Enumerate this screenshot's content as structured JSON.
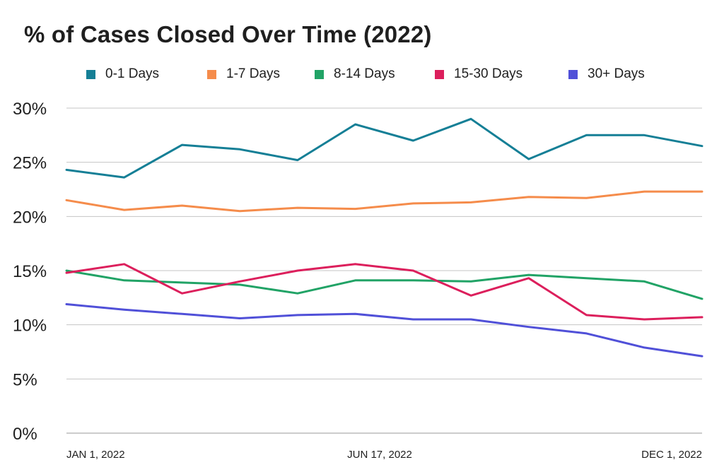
{
  "chart_data": {
    "type": "line",
    "title": "% of Cases Closed Over Time (2022)",
    "xlabel": "",
    "ylabel": "",
    "ylim": [
      0,
      30
    ],
    "y_ticks": [
      "0%",
      "5%",
      "10%",
      "15%",
      "20%",
      "25%",
      "30%"
    ],
    "x_tick_labels": [
      "JAN 1, 2022",
      "JUN 17, 2022",
      "DEC 1, 2022"
    ],
    "legend_position": "top",
    "grid": "horizontal",
    "series": [
      {
        "name": "0-1 Days",
        "color": "#157f96",
        "values": [
          24.3,
          23.6,
          26.6,
          26.2,
          25.2,
          28.5,
          27.0,
          29.0,
          25.3,
          27.5,
          27.5,
          26.5
        ]
      },
      {
        "name": "1-7 Days",
        "color": "#f58c4b",
        "values": [
          21.5,
          20.6,
          21.0,
          20.5,
          20.8,
          20.7,
          21.2,
          21.3,
          21.8,
          21.7,
          22.3,
          22.3
        ]
      },
      {
        "name": "8-14 Days",
        "color": "#21a366",
        "values": [
          15.0,
          14.1,
          13.9,
          13.7,
          12.9,
          14.1,
          14.1,
          14.0,
          14.6,
          14.3,
          14.0,
          12.4
        ]
      },
      {
        "name": "15-30 Days",
        "color": "#dc1f5c",
        "values": [
          14.8,
          15.6,
          12.9,
          14.0,
          15.0,
          15.6,
          15.0,
          12.7,
          14.3,
          10.9,
          10.5,
          10.7
        ]
      },
      {
        "name": "30+ Days",
        "color": "#5050d8",
        "values": [
          11.9,
          11.4,
          11.0,
          10.6,
          10.9,
          11.0,
          10.5,
          10.5,
          9.8,
          9.2,
          7.9,
          7.1
        ]
      }
    ]
  }
}
